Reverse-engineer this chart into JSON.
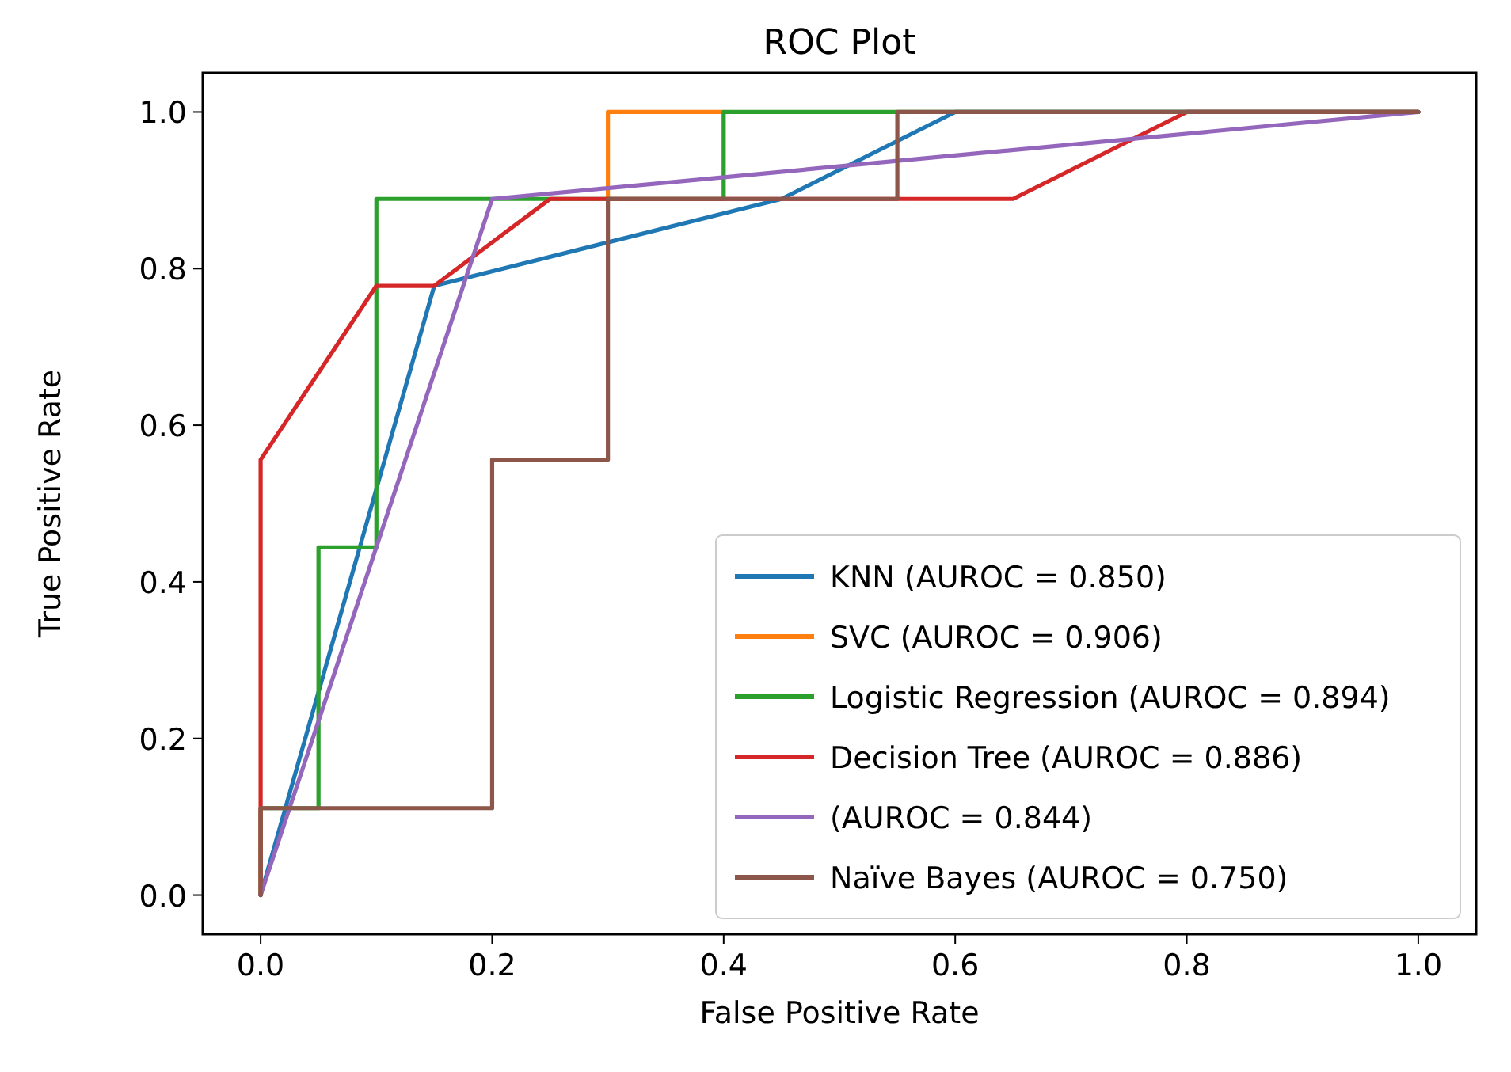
{
  "chart_data": {
    "type": "line",
    "title": "ROC Plot",
    "xlabel": "False Positive Rate",
    "ylabel": "True Positive Rate",
    "xlim": [
      -0.05,
      1.05
    ],
    "ylim": [
      -0.05,
      1.05
    ],
    "xticks": [
      {
        "value": 0,
        "label": "0.0"
      },
      {
        "value": 0.2,
        "label": "0.2"
      },
      {
        "value": 0.4,
        "label": "0.4"
      },
      {
        "value": 0.6,
        "label": "0.6"
      },
      {
        "value": 0.8,
        "label": "0.8"
      },
      {
        "value": 1,
        "label": "1.0"
      }
    ],
    "yticks": [
      {
        "value": 0,
        "label": "0.0"
      },
      {
        "value": 0.2,
        "label": "0.2"
      },
      {
        "value": 0.4,
        "label": "0.4"
      },
      {
        "value": 0.6,
        "label": "0.6"
      },
      {
        "value": 0.8,
        "label": "0.8"
      },
      {
        "value": 1,
        "label": "1.0"
      }
    ],
    "legend": "bottom right",
    "marker": "none",
    "grid": false,
    "series": [
      {
        "name": "KNN (AUROC = 0.850)",
        "color": "#1f77b4",
        "x": [
          0,
          0.15,
          0.45,
          0.6,
          1
        ],
        "values": [
          0,
          0.778,
          0.889,
          1,
          1
        ]
      },
      {
        "name": "SVC (AUROC = 0.906)",
        "color": "#ff7f0e",
        "x": [
          0.3,
          0.3,
          0.4
        ],
        "values": [
          0.889,
          1,
          1
        ]
      },
      {
        "name": "Logistic Regression (AUROC = 0.894)",
        "color": "#2ca02c",
        "x": [
          0,
          0,
          0.05,
          0.05,
          0.1,
          0.1,
          0.4,
          0.4,
          1
        ],
        "values": [
          0,
          0.111,
          0.111,
          0.444,
          0.444,
          0.889,
          0.889,
          1,
          1
        ]
      },
      {
        "name": "Decision Tree (AUROC = 0.886)",
        "color": "#d62728",
        "x": [
          0,
          0,
          0.1,
          0.15,
          0.25,
          0.65,
          0.8,
          1
        ],
        "values": [
          0,
          0.556,
          0.778,
          0.778,
          0.889,
          0.889,
          1,
          1
        ]
      },
      {
        "name": "(AUROC = 0.844)",
        "color": "#9467bd",
        "x": [
          0,
          0.2,
          1
        ],
        "values": [
          0,
          0.889,
          1
        ]
      },
      {
        "name": "Naïve Bayes (AUROC = 0.750)",
        "color": "#8c564b",
        "x": [
          0,
          0,
          0.2,
          0.2,
          0.3,
          0.3,
          0.55,
          0.55,
          1
        ],
        "values": [
          0,
          0.111,
          0.111,
          0.556,
          0.556,
          0.889,
          0.889,
          1,
          1
        ]
      }
    ]
  }
}
